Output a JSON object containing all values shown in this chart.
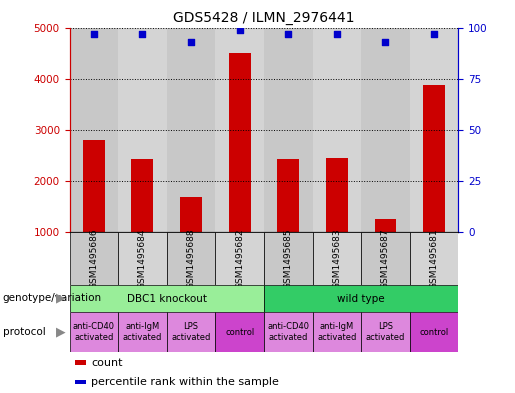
{
  "title": "GDS5428 / ILMN_2976441",
  "samples": [
    "GSM1495686",
    "GSM1495684",
    "GSM1495688",
    "GSM1495682",
    "GSM1495685",
    "GSM1495683",
    "GSM1495687",
    "GSM1495681"
  ],
  "counts": [
    2800,
    2420,
    1680,
    4500,
    2430,
    2450,
    1250,
    3870
  ],
  "percentile_ranks": [
    97,
    97,
    93,
    99,
    97,
    97,
    93,
    97
  ],
  "ylim_left": [
    1000,
    5000
  ],
  "ylim_right": [
    0,
    100
  ],
  "yticks_left": [
    1000,
    2000,
    3000,
    4000,
    5000
  ],
  "yticks_right": [
    0,
    25,
    50,
    75,
    100
  ],
  "bar_color": "#cc0000",
  "dot_color": "#0000cc",
  "background_color": "#ffffff",
  "col_bg_colors": [
    "#c8c8c8",
    "#d4d4d4"
  ],
  "genotype_groups": [
    {
      "label": "DBC1 knockout",
      "start": 0,
      "end": 4,
      "color": "#99ee99"
    },
    {
      "label": "wild type",
      "start": 4,
      "end": 8,
      "color": "#33cc66"
    }
  ],
  "protocol_labels": [
    "anti-CD40\nactivated",
    "anti-IgM\nactivated",
    "LPS\nactivated",
    "control",
    "anti-CD40\nactivated",
    "anti-IgM\nactivated",
    "LPS\nactivated",
    "control"
  ],
  "protocol_colors": [
    "#dd88dd",
    "#dd88dd",
    "#dd88dd",
    "#cc44cc",
    "#dd88dd",
    "#dd88dd",
    "#dd88dd",
    "#cc44cc"
  ],
  "left_axis_color": "#cc0000",
  "right_axis_color": "#0000cc",
  "legend_count_color": "#cc0000",
  "legend_pct_color": "#0000cc",
  "title_fontsize": 10,
  "tick_fontsize": 7.5,
  "sample_fontsize": 6.5,
  "annot_fontsize": 7.5,
  "proto_fontsize": 6,
  "legend_fontsize": 8
}
